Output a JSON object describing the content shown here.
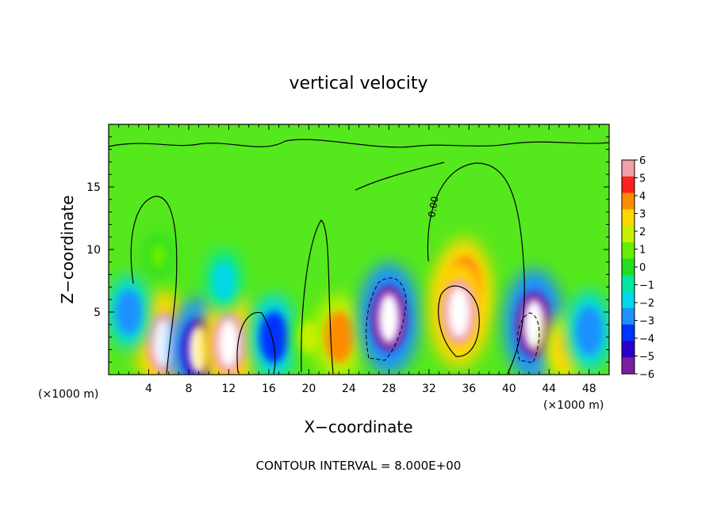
{
  "chart_data": {
    "type": "heatmap",
    "title": "vertical velocity",
    "xlabel": "X−coordinate",
    "ylabel": "Z−coordinate",
    "x_unit_left": "(×1000 m)",
    "x_unit_right": "(×1000 m)",
    "footer": "CONTOUR INTERVAL = 8.000E+00",
    "xlim": [
      0,
      50
    ],
    "ylim": [
      0,
      20
    ],
    "x_ticks": [
      4,
      8,
      12,
      16,
      20,
      24,
      28,
      32,
      36,
      40,
      44,
      48
    ],
    "y_ticks": [
      5,
      10,
      15
    ],
    "contour_label": "0.00",
    "colorbar": {
      "range": [
        -6,
        6
      ],
      "ticks": [
        "6",
        "5",
        "4",
        "3",
        "2",
        "1",
        "0",
        "−1",
        "−2",
        "−3",
        "−4",
        "−5",
        "−6"
      ],
      "colors": [
        "#7a1fa0",
        "#2a00c8",
        "#0033ff",
        "#1e90ff",
        "#00d8e8",
        "#00e8a0",
        "#22dd22",
        "#66ee00",
        "#c8f000",
        "#ffd800",
        "#ff8c00",
        "#ff2020",
        "#f0a0a8"
      ]
    },
    "cells": [
      {
        "x": 5.0,
        "z": 9.5,
        "w": 0.8
      },
      {
        "x": 5.5,
        "z": 2.5,
        "w": 5.5
      },
      {
        "x": 9.0,
        "z": 2.0,
        "w": -5.5
      },
      {
        "x": 12.0,
        "z": 2.5,
        "w": 5.5
      },
      {
        "x": 11.5,
        "z": 7.5,
        "w": -2.2
      },
      {
        "x": 16.5,
        "z": 3.0,
        "w": -4.0
      },
      {
        "x": 20.0,
        "z": 3.0,
        "w": 1.5
      },
      {
        "x": 23.0,
        "z": 3.0,
        "w": 4.0
      },
      {
        "x": 28.0,
        "z": 4.5,
        "w": -6.0
      },
      {
        "x": 35.5,
        "z": 7.0,
        "w": 5.0
      },
      {
        "x": 35.0,
        "z": 5.0,
        "w": 6.0
      },
      {
        "x": 42.5,
        "z": 4.0,
        "w": -6.0
      },
      {
        "x": 45.5,
        "z": 2.0,
        "w": 3.0
      },
      {
        "x": 48.0,
        "z": 3.5,
        "w": -3.5
      },
      {
        "x": 2.0,
        "z": 5.0,
        "w": -3.0
      }
    ]
  }
}
